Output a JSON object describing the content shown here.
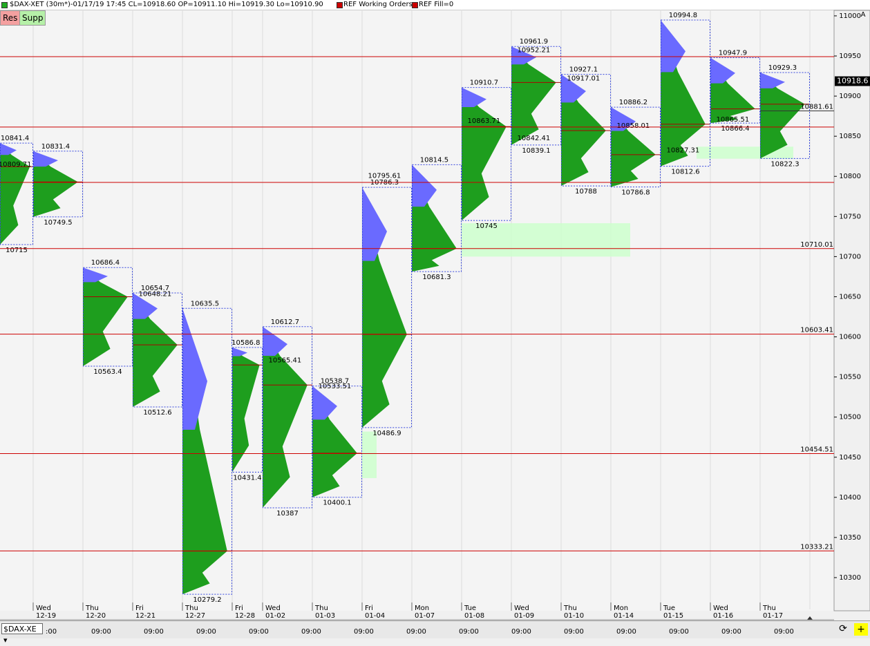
{
  "header": {
    "title": "$DAX-XET (30m*)-01/17/19 17:45 CL=10918.60 OP=10911.10 Hi=10919.30 Lo=10910.90",
    "orders": "REF Working Orders",
    "fill": "REF Fill=0"
  },
  "buttons": [
    "Res",
    "Supp"
  ],
  "axis_button": "A",
  "add_button": "+",
  "chart_data": {
    "type": "profile",
    "symbol": "$DAX-XE",
    "ylim": [
      10269,
      11007.7
    ],
    "yticks": [
      10300,
      10350,
      10400,
      10450,
      10500,
      10550,
      10600,
      10650,
      10700,
      10750,
      10800,
      10850,
      10900,
      10950,
      11000
    ],
    "last_price": 10918.6,
    "day_names": [
      "Wed",
      "Thu",
      "Fri",
      "Thu",
      "Fri",
      "Wed",
      "Thu",
      "Fri",
      "Mon",
      "Tue",
      "Wed",
      "Thu",
      "Mon",
      "Tue",
      "Wed",
      "Thu"
    ],
    "categories": [
      "12-19",
      "12-20",
      "12-21",
      "12-27",
      "12-28",
      "01-02",
      "01-03",
      "01-04",
      "01-07",
      "01-08",
      "01-09",
      "01-10",
      "01-14",
      "01-15",
      "01-16",
      "01-17"
    ],
    "time_labels": [
      ":00",
      "09:00",
      "09:00",
      "09:00",
      "09:00",
      "09:00",
      "09:00",
      "09:00",
      "09:00",
      "09:00",
      "09:00",
      "09:00",
      "09:00",
      "09:00",
      "09:00"
    ],
    "sessions": [
      {
        "high": 10841.4,
        "low": 10715.0,
        "poc": 10812,
        "notes": [
          10809.71
        ]
      },
      {
        "high": 10831.4,
        "low": 10749.5,
        "poc": 10793,
        "notes": []
      },
      {
        "high": 10686.4,
        "low": 10563.4,
        "poc": 10650,
        "notes": []
      },
      {
        "high": 10654.7,
        "low": 10512.6,
        "poc": 10590,
        "notes": [
          10648.21
        ]
      },
      {
        "high": 10635.5,
        "low": 10279.2,
        "poc": 10333,
        "notes": []
      },
      {
        "high": 10586.8,
        "low": 10431.4,
        "poc": 10565,
        "notes": []
      },
      {
        "high": 10612.7,
        "low": 10387.0,
        "poc": 10540,
        "notes": [
          10565.41
        ]
      },
      {
        "high": 10538.7,
        "low": 10400.1,
        "poc": 10455,
        "notes": [
          10533.51
        ]
      },
      {
        "high": 10786.3,
        "low": 10486.9,
        "poc": 10603,
        "notes": [
          10795.61
        ]
      },
      {
        "high": 10814.5,
        "low": 10681.3,
        "poc": 10710,
        "notes": []
      },
      {
        "high": 10910.7,
        "low": 10745.0,
        "poc": 10862,
        "notes": [
          10863.71
        ]
      },
      {
        "high": 10961.9,
        "low": 10839.1,
        "poc": 10917,
        "notes": [
          10952.21,
          10842.41
        ]
      },
      {
        "high": 10927.1,
        "low": 10788.0,
        "poc": 10857,
        "notes": [
          10917.01
        ]
      },
      {
        "high": 10886.2,
        "low": 10786.8,
        "poc": 10827,
        "notes": [
          10858.01
        ]
      },
      {
        "high": 10994.8,
        "low": 10812.6,
        "poc": 10865,
        "notes": [
          10827.31
        ]
      },
      {
        "high": 10947.9,
        "low": 10866.4,
        "poc": 10884,
        "notes": [
          10865.51
        ]
      },
      {
        "high": 10929.3,
        "low": 10822.3,
        "poc": 10890,
        "notes": []
      }
    ],
    "levels": [
      10949.2,
      10861.4,
      10792.5
    ],
    "labeled_levels": [
      10881.61,
      10710.01,
      10603.41,
      10454.51,
      10333.21
    ],
    "zones": [
      {
        "from": 10700,
        "to": 10741.6
      },
      {
        "from": 10424,
        "to": 10482
      },
      {
        "from": 10822,
        "to": 10837
      }
    ]
  }
}
